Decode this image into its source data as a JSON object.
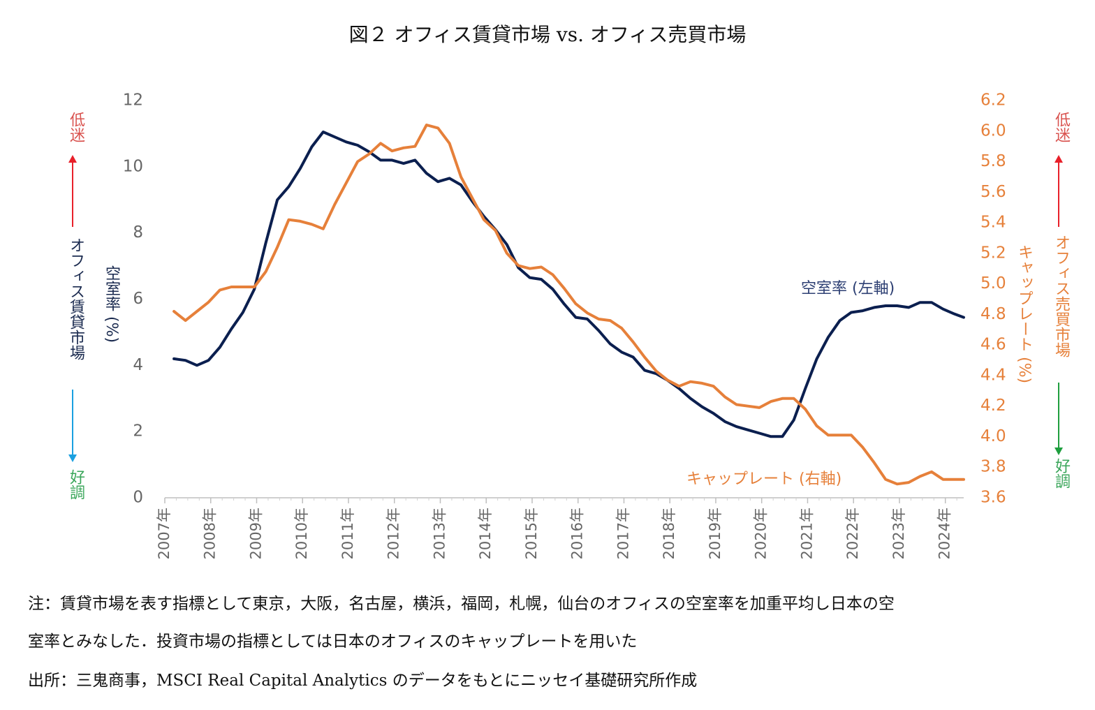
{
  "title": "図２ オフィス賃貸市場 vs. オフィス売買市場",
  "colors": {
    "vacancy": "#0b1f4f",
    "caprate": "#e6803a",
    "axis_text": "#666666",
    "red_arrow": "#e8202a",
    "blue_arrow": "#1aa0e0",
    "green_arrow": "#1e9e3e",
    "bad_text": "#d9534f",
    "good_text": "#3aa65a"
  },
  "left_side": {
    "bad": "低迷",
    "good": "好調",
    "market": "オフィス賃貸市場"
  },
  "right_side": {
    "bad": "低迷",
    "good": "好調",
    "market": "オフィス売買市場"
  },
  "chart_data": {
    "type": "line",
    "x_unit": "year",
    "x_ticks": [
      "2007年",
      "2008年",
      "2009年",
      "2010年",
      "2011年",
      "2012年",
      "2013年",
      "2014年",
      "2015年",
      "2016年",
      "2017年",
      "2018年",
      "2019年",
      "2020年",
      "2021年",
      "2022年",
      "2023年",
      "2024年"
    ],
    "xlim": [
      2007,
      2024.4
    ],
    "y_left": {
      "label": "空室率 (%)",
      "ticks": [
        "0",
        "2",
        "4",
        "6",
        "8",
        "10",
        "12"
      ],
      "ylim": [
        0,
        12
      ]
    },
    "y_right": {
      "label": "キャップレート (%)",
      "ticks": [
        "3.6",
        "3.8",
        "4.0",
        "4.2",
        "4.4",
        "4.6",
        "4.8",
        "5.0",
        "5.2",
        "5.4",
        "5.6",
        "5.8",
        "6.0",
        "6.2"
      ],
      "ylim": [
        3.6,
        6.2
      ]
    },
    "series": [
      {
        "name": "空室率 (左軸)",
        "axis": "left",
        "x": [
          2007.2,
          2007.45,
          2007.7,
          2007.95,
          2008.2,
          2008.45,
          2008.7,
          2008.95,
          2009.2,
          2009.45,
          2009.7,
          2009.95,
          2010.2,
          2010.45,
          2010.7,
          2010.95,
          2011.2,
          2011.45,
          2011.7,
          2011.95,
          2012.2,
          2012.45,
          2012.7,
          2012.95,
          2013.2,
          2013.45,
          2013.7,
          2013.95,
          2014.2,
          2014.45,
          2014.7,
          2014.95,
          2015.2,
          2015.45,
          2015.7,
          2015.95,
          2016.2,
          2016.45,
          2016.7,
          2016.95,
          2017.2,
          2017.45,
          2017.7,
          2017.95,
          2018.2,
          2018.45,
          2018.7,
          2018.95,
          2019.2,
          2019.45,
          2019.7,
          2019.95,
          2020.2,
          2020.45,
          2020.7,
          2020.95,
          2021.2,
          2021.45,
          2021.7,
          2021.95,
          2022.2,
          2022.45,
          2022.7,
          2022.95,
          2023.2,
          2023.45,
          2023.7,
          2023.95,
          2024.2,
          2024.4
        ],
        "values": [
          4.2,
          4.15,
          4.0,
          4.15,
          4.55,
          5.1,
          5.6,
          6.3,
          7.7,
          9.0,
          9.4,
          9.95,
          10.6,
          11.05,
          10.9,
          10.75,
          10.65,
          10.45,
          10.2,
          10.2,
          10.1,
          10.2,
          9.8,
          9.55,
          9.65,
          9.45,
          8.95,
          8.5,
          8.1,
          7.65,
          6.95,
          6.65,
          6.6,
          6.3,
          5.85,
          5.45,
          5.4,
          5.05,
          4.65,
          4.4,
          4.25,
          3.85,
          3.75,
          3.55,
          3.3,
          3.0,
          2.75,
          2.55,
          2.3,
          2.15,
          2.05,
          1.95,
          1.85,
          1.85,
          2.35,
          3.3,
          4.2,
          4.85,
          5.35,
          5.6,
          5.65,
          5.75,
          5.8,
          5.8,
          5.75,
          5.9,
          5.9,
          5.7,
          5.55,
          5.45
        ]
      },
      {
        "name": "キャップレート (右軸)",
        "axis": "right",
        "x": [
          2007.2,
          2007.45,
          2007.7,
          2007.95,
          2008.2,
          2008.45,
          2008.7,
          2008.95,
          2009.2,
          2009.45,
          2009.7,
          2009.95,
          2010.2,
          2010.45,
          2010.7,
          2010.95,
          2011.2,
          2011.45,
          2011.7,
          2011.95,
          2012.2,
          2012.45,
          2012.7,
          2012.95,
          2013.2,
          2013.45,
          2013.7,
          2013.95,
          2014.2,
          2014.45,
          2014.7,
          2014.95,
          2015.2,
          2015.45,
          2015.7,
          2015.95,
          2016.2,
          2016.45,
          2016.7,
          2016.95,
          2017.2,
          2017.45,
          2017.7,
          2017.95,
          2018.2,
          2018.45,
          2018.7,
          2018.95,
          2019.2,
          2019.45,
          2019.7,
          2019.95,
          2020.2,
          2020.45,
          2020.7,
          2020.95,
          2021.2,
          2021.45,
          2021.7,
          2021.95,
          2022.2,
          2022.45,
          2022.7,
          2022.95,
          2023.2,
          2023.45,
          2023.7,
          2023.95,
          2024.2,
          2024.4
        ],
        "values": [
          4.82,
          4.76,
          4.82,
          4.88,
          4.96,
          4.98,
          4.98,
          4.98,
          5.08,
          5.24,
          5.42,
          5.41,
          5.39,
          5.36,
          5.52,
          5.66,
          5.8,
          5.85,
          5.92,
          5.87,
          5.89,
          5.9,
          6.04,
          6.02,
          5.92,
          5.7,
          5.56,
          5.42,
          5.35,
          5.2,
          5.12,
          5.1,
          5.11,
          5.06,
          4.97,
          4.87,
          4.81,
          4.77,
          4.76,
          4.71,
          4.62,
          4.52,
          4.43,
          4.37,
          4.33,
          4.36,
          4.35,
          4.33,
          4.26,
          4.21,
          4.2,
          4.19,
          4.23,
          4.25,
          4.25,
          4.18,
          4.07,
          4.01,
          4.01,
          4.01,
          3.93,
          3.83,
          3.72,
          3.69,
          3.7,
          3.74,
          3.77,
          3.72,
          3.72,
          3.72
        ]
      }
    ]
  },
  "notes": [
    "注：賃貸市場を表す指標として東京，大阪，名古屋，横浜，福岡，札幌，仙台のオフィスの空室率を加重平均し日本の空",
    "室率とみなした．投資市場の指標としては日本のオフィスのキャップレートを用いた",
    "出所：三鬼商事，MSCI Real Capital Analytics のデータをもとにニッセイ基礎研究所作成"
  ]
}
